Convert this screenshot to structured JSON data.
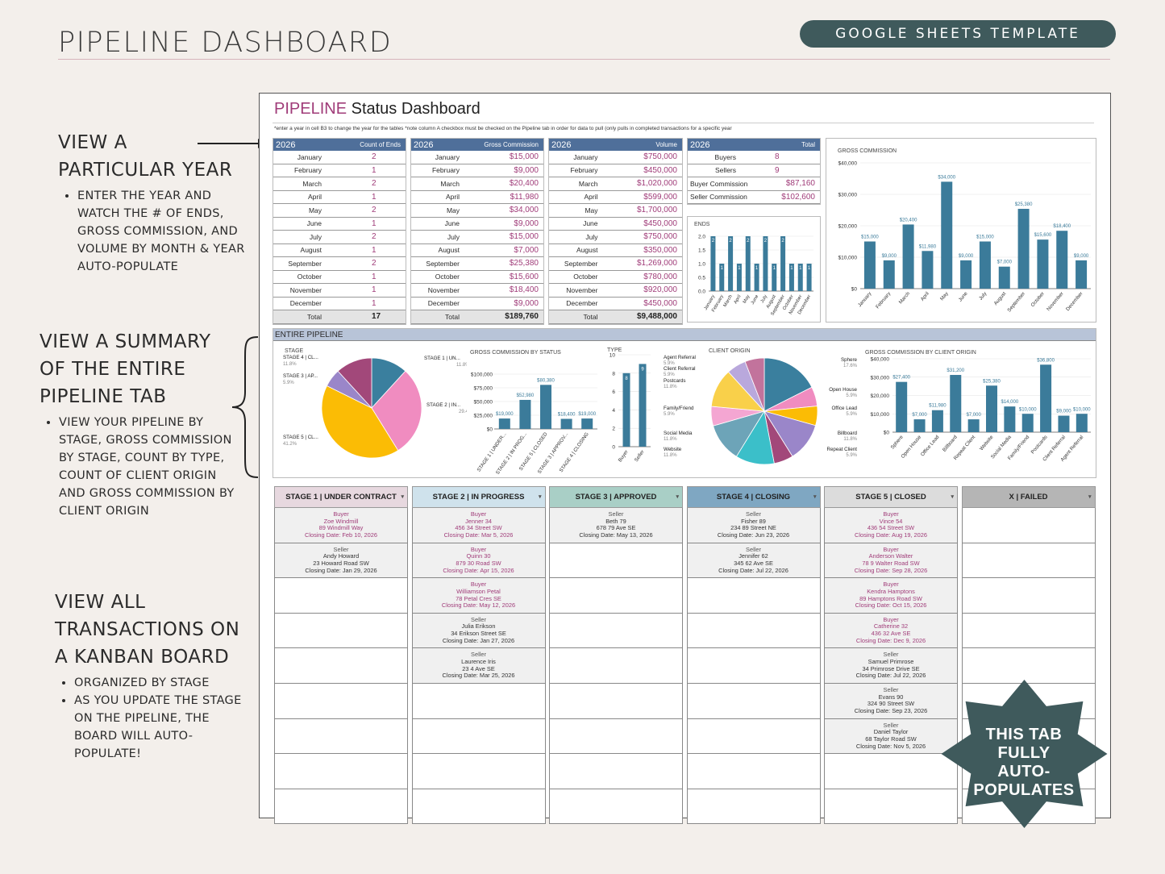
{
  "header": {
    "title": "PIPELINE DASHBOARD",
    "badge": "GOOGLE SHEETS TEMPLATE"
  },
  "annotations": {
    "a1": {
      "heading": [
        "VIEW A",
        "PARTICULAR YEAR"
      ],
      "bullets": [
        "ENTER THE YEAR AND WATCH THE # OF ENDS, GROSS COMMISSION, AND VOLUME BY MONTH & YEAR AUTO-POPULATE"
      ]
    },
    "a2": {
      "heading": [
        "VIEW A SUMMARY",
        "OF THE ENTIRE",
        "PIPELINE TAB"
      ],
      "bullets": [
        "VIEW YOUR PIPELINE BY STAGE, GROSS COMMISSION BY STAGE, COUNT BY TYPE, COUNT OF CLIENT ORIGIN AND GROSS COMMISSION BY CLIENT ORIGIN"
      ]
    },
    "a3": {
      "heading": [
        "VIEW ALL",
        "TRANSACTIONS ON",
        "A KANBAN BOARD"
      ],
      "bullets": [
        "ORGANIZED BY STAGE",
        "AS YOU UPDATE THE STAGE ON THE PIPELINE, THE BOARD WILL AUTO-POPULATE!"
      ]
    }
  },
  "sheet": {
    "title_accent": "PIPELINE",
    "title_rest": " Status Dashboard",
    "note": "*enter a year in cell B3 to change the year for the tables *note column A checkbox must be checked on the Pipeline tab in order for data to pull (only pulls in completed transactions for a specific year",
    "year": "2026",
    "months": [
      "January",
      "February",
      "March",
      "April",
      "May",
      "June",
      "July",
      "August",
      "September",
      "October",
      "November",
      "December"
    ],
    "total_label": "Total",
    "ends": {
      "header": "Count of Ends",
      "values": [
        "2",
        "1",
        "2",
        "1",
        "2",
        "1",
        "2",
        "1",
        "2",
        "1",
        "1",
        "1"
      ],
      "total": "17"
    },
    "gross": {
      "header": "Gross Commission",
      "values": [
        "$15,000",
        "$9,000",
        "$20,400",
        "$11,980",
        "$34,000",
        "$9,000",
        "$15,000",
        "$7,000",
        "$25,380",
        "$15,600",
        "$18,400",
        "$9,000"
      ],
      "total": "$189,760"
    },
    "volume": {
      "header": "Volume",
      "values": [
        "$750,000",
        "$450,000",
        "$1,020,000",
        "$599,000",
        "$1,700,000",
        "$450,000",
        "$750,000",
        "$350,000",
        "$1,269,000",
        "$780,000",
        "$920,000",
        "$450,000"
      ],
      "total": "$9,488,000"
    },
    "totals": {
      "header": "Total",
      "rows": [
        {
          "label": "Buyers",
          "value": "8"
        },
        {
          "label": "Sellers",
          "value": "9"
        },
        {
          "label": "Buyer Commission",
          "value": "$87,160"
        },
        {
          "label": "Seller Commission",
          "value": "$102,600"
        }
      ]
    },
    "pipeline_label": "ENTIRE PIPELINE"
  },
  "colors": {
    "bar": "#3b7b9a",
    "accent": "#a03c79",
    "header": "#4f6f9a"
  },
  "chart_data": [
    {
      "type": "bar",
      "title": "ENDS",
      "categories": [
        "January",
        "February",
        "March",
        "April",
        "May",
        "June",
        "July",
        "August",
        "September",
        "October",
        "November",
        "December"
      ],
      "values": [
        2,
        1,
        2,
        1,
        2,
        1,
        2,
        1,
        2,
        1,
        1,
        1
      ],
      "ylim": [
        0,
        2
      ],
      "yticks": [
        "0.0",
        "0.5",
        "1.0",
        "1.5",
        "2.0"
      ]
    },
    {
      "type": "bar",
      "title": "GROSS COMMISSION",
      "categories": [
        "January",
        "February",
        "March",
        "April",
        "May",
        "June",
        "July",
        "August",
        "September",
        "October",
        "November",
        "December"
      ],
      "values": [
        15000,
        9000,
        20400,
        11980,
        34000,
        9000,
        15000,
        7000,
        25380,
        15600,
        18400,
        9000
      ],
      "labels": [
        "$15,000",
        "$9,000",
        "$20,400",
        "$11,980",
        "$34,000",
        "$9,000",
        "$15,000",
        "$7,000",
        "$25,380",
        "$15,600",
        "$18,400",
        "$9,000"
      ],
      "ylim": [
        0,
        40000
      ],
      "yticks": [
        "$0",
        "$10,000",
        "$20,000",
        "$30,000",
        "$40,000"
      ]
    },
    {
      "type": "pie",
      "title": "STAGE",
      "slices": [
        {
          "label": "STAGE 1 | UN...",
          "pct": "11.8%",
          "value": 11.8,
          "color": "#3a7f9e"
        },
        {
          "label": "STAGE 2 | IN...",
          "pct": "29.4%",
          "value": 29.4,
          "color": "#f08cc0"
        },
        {
          "label": "STAGE 5 | CL...",
          "pct": "41.2%",
          "value": 41.2,
          "color": "#fbbc05"
        },
        {
          "label": "STAGE 3 | AP...",
          "pct": "5.9%",
          "value": 5.9,
          "color": "#9a86c9"
        },
        {
          "label": "STAGE 4 | CL...",
          "pct": "11.8%",
          "value": 11.8,
          "color": "#a2487a"
        }
      ]
    },
    {
      "type": "bar",
      "title": "GROSS COMMISSION BY STATUS",
      "categories": [
        "STAGE 1 | UNDER...",
        "STAGE 2 | IN PROG...",
        "STAGE 5 | CLOSED",
        "STAGE 3 | APPROV...",
        "STAGE 4 | CLOSING"
      ],
      "values": [
        19000,
        52980,
        80380,
        18400,
        19000
      ],
      "labels": [
        "$19,000",
        "$52,980",
        "$80,380",
        "$18,400",
        "$19,000"
      ],
      "ylim": [
        0,
        100000
      ],
      "yticks": [
        "$0",
        "$25,000",
        "$50,000",
        "$75,000",
        "$100,000"
      ]
    },
    {
      "type": "bar",
      "title": "TYPE",
      "categories": [
        "Buyer",
        "Seller"
      ],
      "values": [
        8,
        9
      ],
      "labels": [
        "8",
        "9"
      ],
      "ylim": [
        0,
        10
      ],
      "yticks": [
        "0",
        "2",
        "4",
        "6",
        "8",
        "10"
      ]
    },
    {
      "type": "pie",
      "title": "CLIENT ORIGIN",
      "slices": [
        {
          "label": "Sphere",
          "pct": "17.6%",
          "value": 17.6,
          "color": "#3a7f9e"
        },
        {
          "label": "Open House",
          "pct": "5.9%",
          "value": 5.9,
          "color": "#f08cc0"
        },
        {
          "label": "Office Lead",
          "pct": "5.9%",
          "value": 5.9,
          "color": "#fbbc05"
        },
        {
          "label": "Billboard",
          "pct": "11.8%",
          "value": 11.8,
          "color": "#9a86c9"
        },
        {
          "label": "Repeat Client",
          "pct": "5.9%",
          "value": 5.9,
          "color": "#a2487a"
        },
        {
          "label": "Website",
          "pct": "11.8%",
          "value": 11.8,
          "color": "#3bbfc9"
        },
        {
          "label": "Social Media",
          "pct": "11.8%",
          "value": 11.8,
          "color": "#6da4b8"
        },
        {
          "label": "Family/Friend",
          "pct": "5.9%",
          "value": 5.9,
          "color": "#f4a6d2"
        },
        {
          "label": "Postcards",
          "pct": "11.8%",
          "value": 11.8,
          "color": "#f9d04a"
        },
        {
          "label": "Client Referral",
          "pct": "5.9%",
          "value": 5.9,
          "color": "#b9a8dc"
        },
        {
          "label": "Agent Referral",
          "pct": "5.9%",
          "value": 5.9,
          "color": "#c2739c"
        }
      ]
    },
    {
      "type": "bar",
      "title": "GROSS COMMISSION BY CLIENT ORIGIN",
      "categories": [
        "Sphere",
        "Open House",
        "Office Lead",
        "Billboard",
        "Repeat Client",
        "Website",
        "Social Media",
        "Family/Friend",
        "Postcards",
        "Client Referral",
        "Agent Referral"
      ],
      "values": [
        27400,
        7000,
        11980,
        31200,
        7000,
        25380,
        14000,
        10000,
        36800,
        9000,
        10000
      ],
      "labels": [
        "$27,400",
        "$7,000",
        "$11,980",
        "$31,200",
        "$7,000",
        "$25,380",
        "$14,000",
        "$10,000",
        "$36,800",
        "$9,000",
        "$10,000"
      ],
      "ylim": [
        0,
        40000
      ],
      "yticks": [
        "$0",
        "$10,000",
        "$20,000",
        "$30,000",
        "$40,000"
      ]
    }
  ],
  "kanban": [
    {
      "title": "STAGE 1 | UNDER CONTRACT",
      "color": "#e7d8df",
      "cards": [
        {
          "type": "Buyer",
          "name": "Zoe Windmill",
          "addr": "89 Windmill Way",
          "date": "Closing Date: Feb 10, 2026"
        },
        {
          "type": "Seller",
          "name": "Andy Howard",
          "addr": "23 Howard Road SW",
          "date": "Closing Date: Jan 29, 2026"
        }
      ]
    },
    {
      "title": "STAGE 2 | IN PROGRESS",
      "color": "#cfe2ec",
      "cards": [
        {
          "type": "Buyer",
          "name": "Jenner 34",
          "addr": "456 34 Street SW",
          "date": "Closing Date: Mar 5, 2026"
        },
        {
          "type": "Buyer",
          "name": "Quinn 30",
          "addr": "879 30 Road SW",
          "date": "Closing Date: Apr 15, 2026"
        },
        {
          "type": "Buyer",
          "name": "Williamson Petal",
          "addr": "78 Petal Cres SE",
          "date": "Closing Date: May 12, 2026"
        },
        {
          "type": "Seller",
          "name": "Julia Erikson",
          "addr": "34 Erikson Street SE",
          "date": "Closing Date: Jan 27, 2026"
        },
        {
          "type": "Seller",
          "name": "Laurence Iris",
          "addr": "23 4 Ave SE",
          "date": "Closing Date: Mar 25, 2026"
        }
      ]
    },
    {
      "title": "STAGE 3 | APPROVED",
      "color": "#a9cfc6",
      "cards": [
        {
          "type": "Seller",
          "name": "Beth 79",
          "addr": "678 79 Ave SE",
          "date": "Closing Date: May 13, 2026"
        }
      ]
    },
    {
      "title": "STAGE 4 | CLOSING",
      "color": "#7fa7c2",
      "cards": [
        {
          "type": "Seller",
          "name": "Fisher 89",
          "addr": "234 89 Street NE",
          "date": "Closing Date: Jun 23, 2026"
        },
        {
          "type": "Seller",
          "name": "Jennifer 62",
          "addr": "345 62 Ave SE",
          "date": "Closing Date: Jul 22, 2026"
        }
      ]
    },
    {
      "title": "STAGE 5 | CLOSED",
      "color": "#dcdcdc",
      "cards": [
        {
          "type": "Buyer",
          "name": "Vince 54",
          "addr": "436 54 Street SW",
          "date": "Closing Date: Aug 19, 2026"
        },
        {
          "type": "Buyer",
          "name": "Anderson Walter",
          "addr": "78 9 Walter Road SW",
          "date": "Closing Date: Sep 28, 2026"
        },
        {
          "type": "Buyer",
          "name": "Kendra Hamptons",
          "addr": "89 Hamptons Road SW",
          "date": "Closing Date: Oct 15, 2026"
        },
        {
          "type": "Buyer",
          "name": "Catherine 32",
          "addr": "436 32 Ave SE",
          "date": "Closing Date: Dec 9, 2026"
        },
        {
          "type": "Seller",
          "name": "Samuel Primrose",
          "addr": "34 Primrose Drive SE",
          "date": "Closing Date: Jul 22, 2026"
        },
        {
          "type": "Seller",
          "name": "Evans 90",
          "addr": "324 90 Street SW",
          "date": "Closing Date: Sep 23, 2026"
        },
        {
          "type": "Seller",
          "name": "Daniel Taylor",
          "addr": "68 Taylor Road SW",
          "date": "Closing Date: Nov 5, 2026"
        }
      ]
    },
    {
      "title": "X | FAILED",
      "color": "#b5b5b5",
      "cards": []
    }
  ],
  "badge_star": {
    "lines": [
      "THIS TAB",
      "FULLY",
      "AUTO-",
      "POPULATES"
    ],
    "color": "#3f5a5c"
  }
}
